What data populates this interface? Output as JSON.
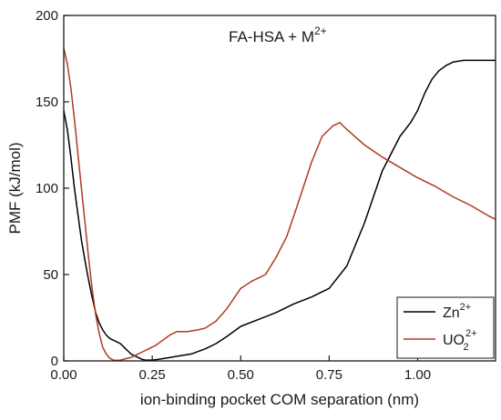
{
  "chart_data": {
    "type": "line",
    "annotation": {
      "main": "FA-HSA + M",
      "sup": "2+"
    },
    "xlabel": "ion-binding pocket COM separation (nm)",
    "ylabel": "PMF (kJ/mol)",
    "xlim": [
      0,
      1.22
    ],
    "ylim": [
      0,
      200
    ],
    "xticks": [
      0,
      0.25,
      0.5,
      0.75,
      1.0
    ],
    "xtick_labels": [
      "0.00",
      "0.25",
      "0.50",
      "0.75",
      "1.00"
    ],
    "yticks": [
      0,
      50,
      100,
      150,
      200
    ],
    "ytick_labels": [
      "0",
      "50",
      "100",
      "150",
      "200"
    ],
    "grid": false,
    "legend_position": "bottom-right",
    "series": [
      {
        "legend": {
          "main": "Zn",
          "sup": "2+",
          "sub": ""
        },
        "color": "#000000",
        "x": [
          0.0,
          0.01,
          0.02,
          0.03,
          0.04,
          0.05,
          0.06,
          0.07,
          0.08,
          0.09,
          0.1,
          0.11,
          0.12,
          0.13,
          0.14,
          0.15,
          0.16,
          0.17,
          0.18,
          0.19,
          0.2,
          0.21,
          0.22,
          0.23,
          0.24,
          0.25,
          0.27,
          0.3,
          0.33,
          0.36,
          0.4,
          0.43,
          0.46,
          0.5,
          0.55,
          0.6,
          0.65,
          0.7,
          0.75,
          0.8,
          0.85,
          0.9,
          0.95,
          0.98,
          1.0,
          1.02,
          1.04,
          1.06,
          1.08,
          1.1,
          1.13,
          1.16,
          1.2,
          1.22
        ],
        "y": [
          145,
          134,
          118,
          100,
          85,
          70,
          58,
          47,
          37,
          28,
          22,
          18,
          15,
          13,
          12,
          11,
          10,
          8,
          6,
          4,
          3,
          2,
          1,
          0.5,
          0.5,
          0.5,
          1,
          2,
          3,
          4,
          7,
          10,
          14,
          20,
          24,
          28,
          33,
          37,
          42,
          55,
          80,
          110,
          130,
          138,
          145,
          155,
          163,
          168,
          171,
          173,
          174,
          174,
          174,
          174
        ]
      },
      {
        "legend": {
          "main": "UO",
          "sup": "2+",
          "sub": "2"
        },
        "color": "#b03a20",
        "x": [
          0.0,
          0.01,
          0.02,
          0.03,
          0.04,
          0.05,
          0.06,
          0.07,
          0.08,
          0.09,
          0.1,
          0.11,
          0.12,
          0.13,
          0.14,
          0.15,
          0.16,
          0.17,
          0.18,
          0.19,
          0.2,
          0.22,
          0.24,
          0.26,
          0.28,
          0.3,
          0.32,
          0.35,
          0.38,
          0.4,
          0.43,
          0.46,
          0.5,
          0.53,
          0.57,
          0.6,
          0.63,
          0.66,
          0.7,
          0.73,
          0.76,
          0.78,
          0.8,
          0.85,
          0.9,
          0.95,
          1.0,
          1.05,
          1.1,
          1.15,
          1.2,
          1.22
        ],
        "y": [
          181,
          172,
          158,
          140,
          120,
          100,
          80,
          60,
          42,
          27,
          16,
          8,
          4,
          1.5,
          0.5,
          0.3,
          0.5,
          1,
          1.5,
          2,
          3,
          5,
          7,
          9,
          12,
          15,
          17,
          17,
          18,
          19,
          23,
          30,
          42,
          46,
          50,
          60,
          72,
          90,
          115,
          130,
          136,
          138,
          134,
          125,
          118,
          112,
          106,
          101,
          95,
          90,
          84,
          82
        ]
      }
    ]
  }
}
